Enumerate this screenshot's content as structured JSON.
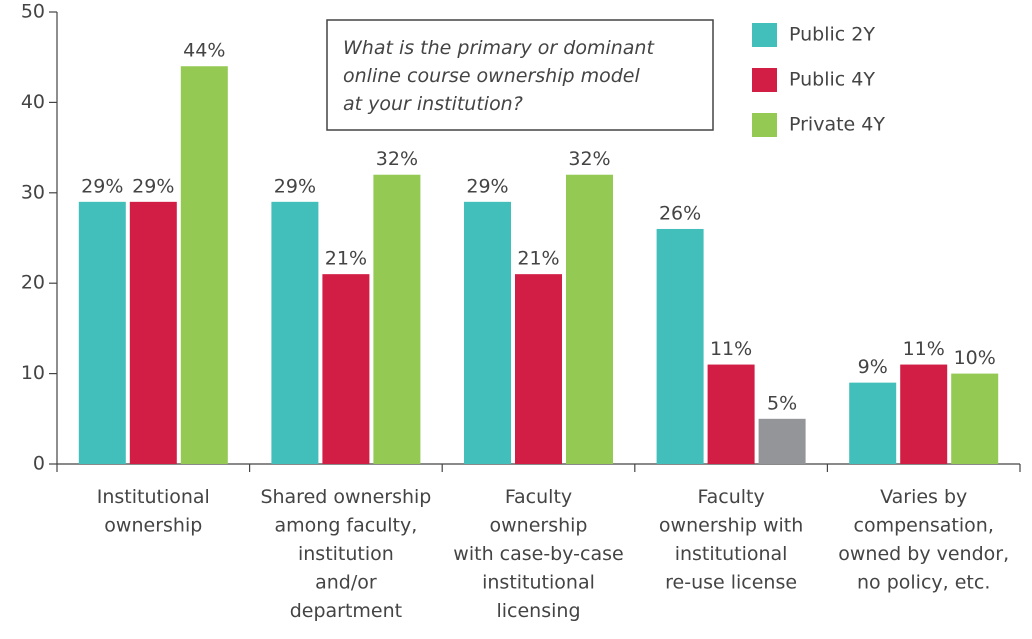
{
  "chart_data": {
    "type": "bar",
    "categories": [
      [
        "Institutional",
        "ownership"
      ],
      [
        "Shared ownership",
        "among faculty,",
        "institution",
        "and/or",
        "department"
      ],
      [
        "Faculty",
        "ownership",
        "with case-by-case",
        "institutional",
        "licensing"
      ],
      [
        "Faculty",
        "ownership with",
        "institutional",
        "re-use license"
      ],
      [
        "Varies by",
        "compensation,",
        "owned by vendor,",
        "no policy, etc."
      ]
    ],
    "series": [
      {
        "name": "Public 2Y",
        "color": "#43bfbb",
        "values": [
          29,
          29,
          29,
          26,
          9
        ],
        "value_labels": [
          "29%",
          "29%",
          "29%",
          "26%",
          "9%"
        ]
      },
      {
        "name": "Public 4Y",
        "color": "#d21e45",
        "values": [
          29,
          21,
          21,
          11,
          11
        ],
        "value_labels": [
          "29%",
          "21%",
          "21%",
          "11%",
          "11%"
        ]
      },
      {
        "name": "Private 4Y",
        "color": "#94c954",
        "colors": [
          "#94c954",
          "#94c954",
          "#94c954",
          "#939598",
          "#94c954"
        ],
        "values": [
          44,
          32,
          32,
          5,
          10
        ],
        "value_labels": [
          "44%",
          "32%",
          "32%",
          "5%",
          "10%"
        ]
      }
    ],
    "annotation": [
      "What is the primary or dominant",
      "online course ownership model",
      "at your institution?"
    ],
    "ylim": [
      0,
      50
    ],
    "yticks": [
      0,
      10,
      20,
      30,
      40,
      50
    ],
    "legend": "top-right"
  }
}
